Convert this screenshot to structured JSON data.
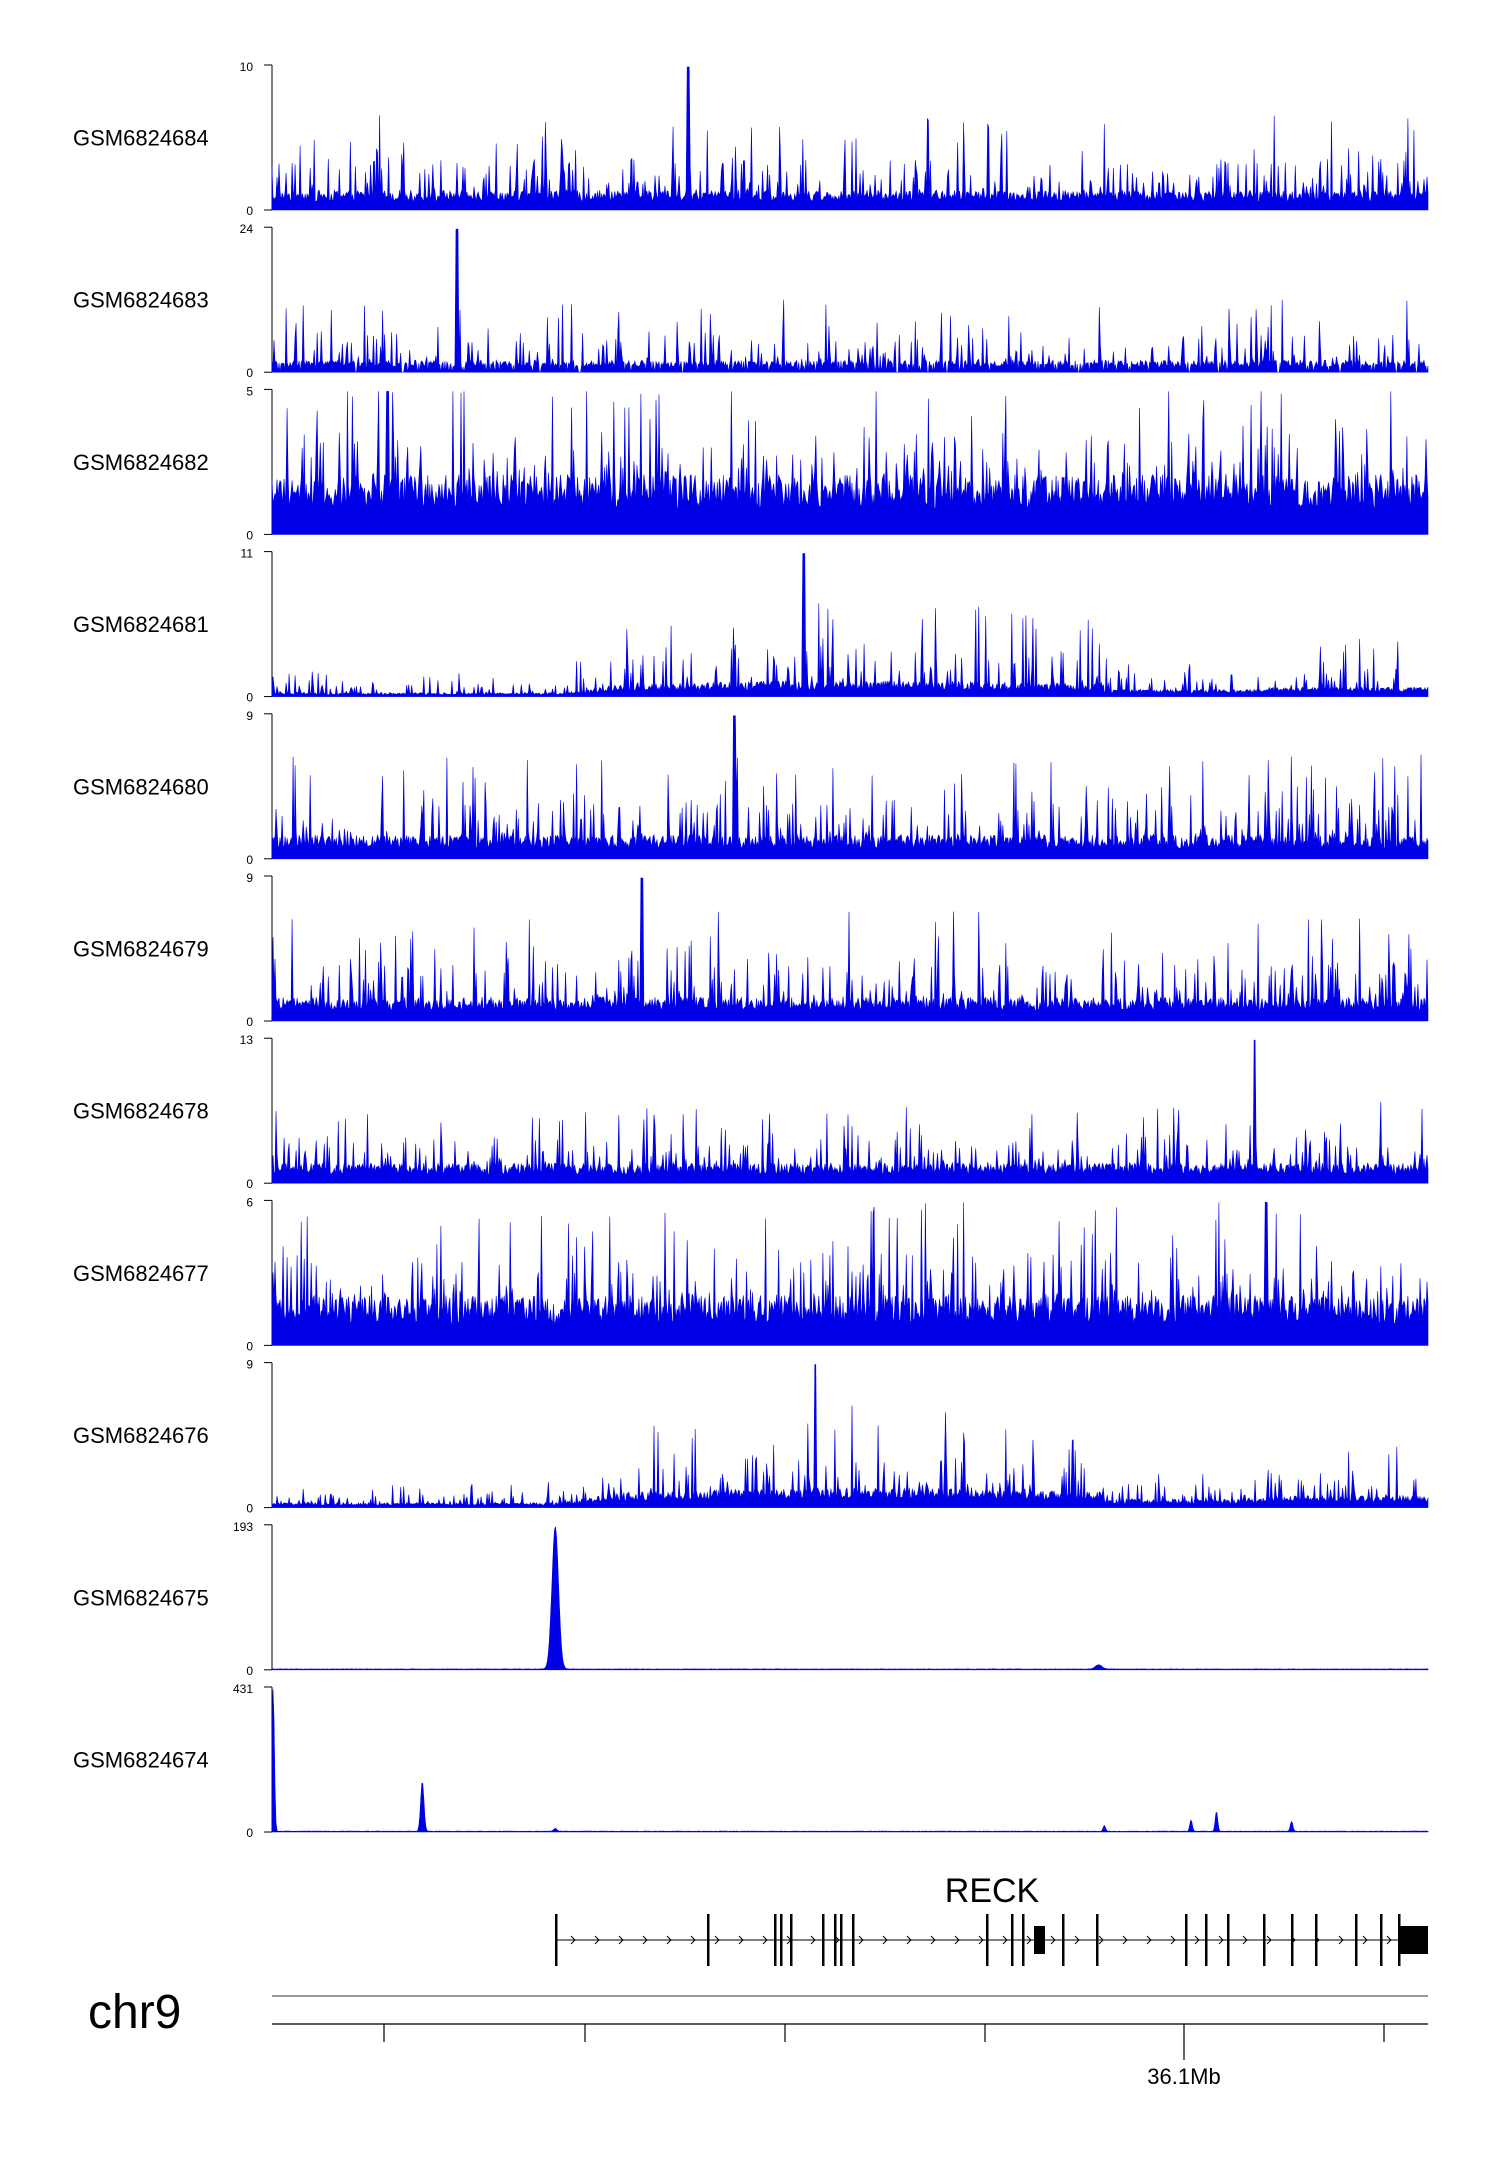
{
  "chart_data": {
    "type": "area",
    "title": "",
    "color": "#0000e6",
    "chromosome": "chr9",
    "gene": {
      "name": "RECK",
      "strand": "+",
      "exon_markers": [
        "exon-1",
        "exon-2",
        "exon-3",
        "exon-4",
        "exon-5",
        "exon-6",
        "exon-7",
        "exon-8",
        "exon-9",
        "exon-10",
        "exon-11",
        "exon-12",
        "exon-13",
        "exon-14",
        "exon-15",
        "exon-16",
        "exon-17",
        "exon-18",
        "exon-19",
        "exon-20",
        "exon-21"
      ]
    },
    "tracks": [
      {
        "name": "GSM6824684",
        "ymax": 10,
        "ymin": 0,
        "profile": "spiky",
        "baseline": 0.1,
        "spike": 0.55,
        "peak_frac": 0.36
      },
      {
        "name": "GSM6824683",
        "ymax": 24,
        "ymin": 0,
        "profile": "sparse",
        "baseline": 0.06,
        "spike": 0.45,
        "peak_frac": 0.16
      },
      {
        "name": "GSM6824682",
        "ymax": 5,
        "ymin": 0,
        "profile": "dense",
        "baseline": 0.3,
        "spike": 0.8,
        "peak_frac": 0.1
      },
      {
        "name": "GSM6824681",
        "ymax": 11,
        "ymin": 0,
        "profile": "hump",
        "baseline": 0.08,
        "spike": 0.6,
        "peak_frac": 0.46
      },
      {
        "name": "GSM6824680",
        "ymax": 9,
        "ymin": 0,
        "profile": "spiky",
        "baseline": 0.12,
        "spike": 0.6,
        "peak_frac": 0.4
      },
      {
        "name": "GSM6824679",
        "ymax": 9,
        "ymin": 0,
        "profile": "spiky",
        "baseline": 0.12,
        "spike": 0.65,
        "peak_frac": 0.32
      },
      {
        "name": "GSM6824678",
        "ymax": 13,
        "ymin": 0,
        "profile": "spiky",
        "baseline": 0.1,
        "spike": 0.45,
        "peak_frac": 0.85
      },
      {
        "name": "GSM6824677",
        "ymax": 6,
        "ymin": 0,
        "profile": "dense",
        "baseline": 0.25,
        "spike": 0.75,
        "peak_frac": 0.86
      },
      {
        "name": "GSM6824676",
        "ymax": 9,
        "ymin": 0,
        "profile": "hump",
        "baseline": 0.1,
        "spike": 0.6,
        "peak_frac": 0.47
      },
      {
        "name": "GSM6824675",
        "ymax": 193,
        "ymin": 0,
        "profile": "peak",
        "peaks": [
          [
            0.245,
            1.0,
            0.004
          ],
          [
            0.715,
            0.03,
            0.004
          ]
        ]
      },
      {
        "name": "GSM6824674",
        "ymax": 431,
        "ymin": 0,
        "profile": "peak",
        "peaks": [
          [
            0.001,
            1.0,
            0.0015
          ],
          [
            0.13,
            0.35,
            0.002
          ],
          [
            0.245,
            0.02,
            0.002
          ],
          [
            0.72,
            0.04,
            0.0015
          ],
          [
            0.795,
            0.08,
            0.0015
          ],
          [
            0.817,
            0.14,
            0.0015
          ],
          [
            0.882,
            0.07,
            0.0015
          ]
        ]
      }
    ],
    "x_axis": {
      "tick_labels": [
        "",
        "",
        "",
        "",
        "36.1Mb",
        ""
      ],
      "labeled_tick": "36.1Mb"
    }
  }
}
